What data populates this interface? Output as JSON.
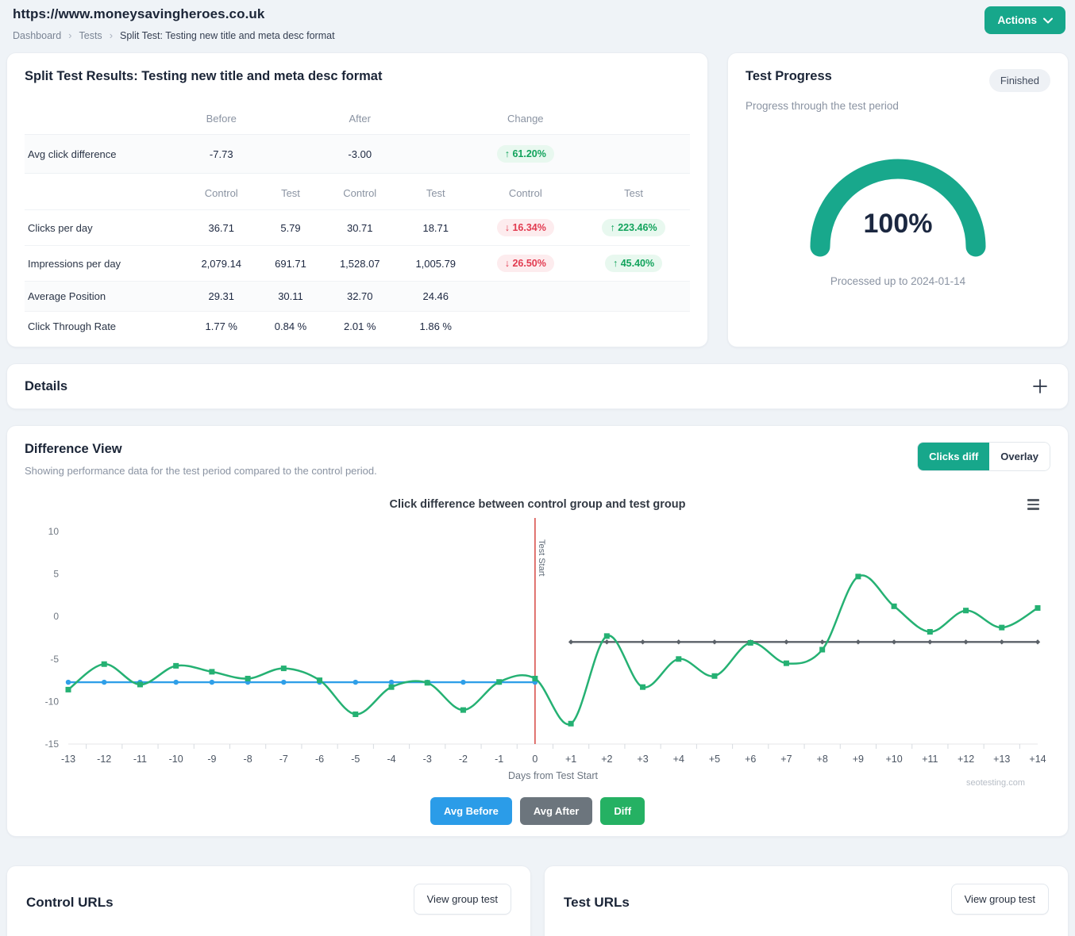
{
  "header": {
    "site_url": "https://www.moneysavingheroes.co.uk",
    "breadcrumb": [
      "Dashboard",
      "Tests",
      "Split Test: Testing new title and meta desc format"
    ],
    "actions_label": "Actions"
  },
  "results": {
    "title": "Split Test Results: Testing new title and meta desc format",
    "group_headers": [
      "Before",
      "After",
      "Change"
    ],
    "avg_row": {
      "label": "Avg click difference",
      "before": "-7.73",
      "after": "-3.00",
      "change": {
        "dir": "up",
        "text": "61.20%"
      }
    },
    "sub_headers": [
      "Control",
      "Test",
      "Control",
      "Test",
      "Control",
      "Test"
    ],
    "rows": [
      {
        "label": "Clicks per day",
        "shaded": false,
        "values": [
          "36.71",
          "5.79",
          "30.71",
          "18.71"
        ],
        "control_change": {
          "dir": "down",
          "text": "16.34%"
        },
        "test_change": {
          "dir": "up",
          "text": "223.46%"
        }
      },
      {
        "label": "Impressions per day",
        "shaded": false,
        "values": [
          "2,079.14",
          "691.71",
          "1,528.07",
          "1,005.79"
        ],
        "control_change": {
          "dir": "down",
          "text": "26.50%"
        },
        "test_change": {
          "dir": "up",
          "text": "45.40%"
        }
      },
      {
        "label": "Average Position",
        "shaded": true,
        "values": [
          "29.31",
          "30.11",
          "32.70",
          "24.46"
        ],
        "control_change": null,
        "test_change": null
      },
      {
        "label": "Click Through Rate",
        "shaded": false,
        "values": [
          "1.77 %",
          "0.84 %",
          "2.01 %",
          "1.86 %"
        ],
        "control_change": null,
        "test_change": null
      }
    ]
  },
  "progress": {
    "title": "Test Progress",
    "badge": "Finished",
    "subtitle": "Progress through the test period",
    "percent": "100%",
    "caption": "Processed up to 2024-01-14"
  },
  "details": {
    "title": "Details"
  },
  "difference_view": {
    "title": "Difference View",
    "subtitle": "Showing performance data for the test period compared to the control period.",
    "toggle": [
      "Clicks diff",
      "Overlay"
    ],
    "active_toggle": "Clicks diff",
    "watermark": "seotesting.com"
  },
  "chart_data": {
    "type": "line",
    "title": "Click difference between control group and test group",
    "xlabel": "Days from Test Start",
    "ylim": [
      -15,
      10
    ],
    "yticks": [
      10,
      5,
      0,
      -5,
      -10,
      -15
    ],
    "grid": false,
    "x": [
      -13,
      -12,
      -11,
      -10,
      -9,
      -8,
      -7,
      -6,
      -5,
      -4,
      -3,
      -2,
      -1,
      0,
      1,
      2,
      3,
      4,
      5,
      6,
      7,
      8,
      9,
      10,
      11,
      12,
      13,
      14
    ],
    "plotline": {
      "x": 0,
      "label": "Test Start",
      "color": "#d9534f"
    },
    "series": [
      {
        "name": "Avg Before",
        "type": "flat",
        "value": -7.73,
        "x_start": -13,
        "x_end": 0,
        "color": "#2f9fe8",
        "marker": "circle"
      },
      {
        "name": "Avg After",
        "type": "flat",
        "value": -3.0,
        "x_start": 1,
        "x_end": 14,
        "color": "#5b6168",
        "marker": "diamond"
      },
      {
        "name": "Diff",
        "type": "spline",
        "color": "#25b173",
        "marker": "square",
        "values": [
          -8.6,
          -5.6,
          -8.0,
          -5.8,
          -6.5,
          -7.3,
          -6.1,
          -7.5,
          -11.5,
          -8.3,
          -7.8,
          -11.0,
          -7.7,
          -7.3,
          -12.6,
          -2.3,
          -8.3,
          -5.0,
          -7.0,
          -3.1,
          -5.5,
          -3.9,
          4.7,
          1.2,
          -1.8,
          0.7,
          -1.3,
          1.0
        ]
      }
    ],
    "legend_buttons": [
      {
        "label": "Avg Before",
        "color": "#2b9ce8"
      },
      {
        "label": "Avg After",
        "color": "#6c757d"
      },
      {
        "label": "Diff",
        "color": "#25b163"
      }
    ]
  },
  "control_urls": {
    "title": "Control URLs",
    "button": "View group test"
  },
  "test_urls": {
    "title": "Test URLs",
    "button": "View group test"
  },
  "colors": {
    "accent": "#17a78b",
    "up": "#12a35c",
    "down": "#e23b50",
    "red_line": "#d9534f",
    "blue": "#2f9fe8",
    "gray": "#5b6168",
    "green": "#25b173"
  }
}
